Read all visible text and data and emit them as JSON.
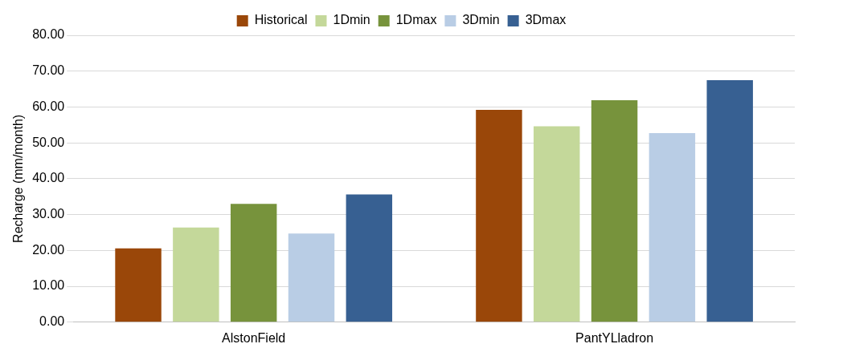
{
  "chart_data": {
    "type": "bar",
    "ylabel": "Recharge (mm/month)",
    "categories": [
      "AlstonField",
      "PantYLladron"
    ],
    "series": [
      {
        "name": "Historical",
        "color": "#9a4709",
        "values": [
          20.6,
          59.2
        ]
      },
      {
        "name": "1Dmin",
        "color": "#c4d89a",
        "values": [
          26.4,
          54.6
        ]
      },
      {
        "name": "1Dmax",
        "color": "#77933c",
        "values": [
          33.0,
          61.9
        ]
      },
      {
        "name": "3Dmin",
        "color": "#b9cde5",
        "values": [
          24.7,
          52.7
        ]
      },
      {
        "name": "3Dmax",
        "color": "#376092",
        "values": [
          35.6,
          67.5
        ]
      }
    ],
    "ylim": [
      0,
      80
    ],
    "yticks": [
      {
        "value": 0,
        "label": "0.00"
      },
      {
        "value": 10,
        "label": "10.00"
      },
      {
        "value": 20,
        "label": "20.00"
      },
      {
        "value": 30,
        "label": "30.00"
      },
      {
        "value": 40,
        "label": "40.00"
      },
      {
        "value": 50,
        "label": "50.00"
      },
      {
        "value": 60,
        "label": "60.00"
      },
      {
        "value": 70,
        "label": "70.00"
      },
      {
        "value": 80,
        "label": "80.00"
      }
    ],
    "grid": "y",
    "legend": "top"
  }
}
